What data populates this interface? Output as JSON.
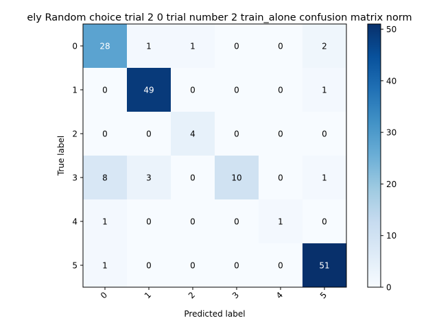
{
  "chart_data": {
    "type": "heatmap",
    "title": "ely Random choice trial 2 0 trial number 2 train_alone confusion matrix norm",
    "xlabel": "Predicted label",
    "ylabel": "True label",
    "x_categories": [
      "0",
      "1",
      "2",
      "3",
      "4",
      "5"
    ],
    "y_categories": [
      "0",
      "1",
      "2",
      "3",
      "4",
      "5"
    ],
    "values": [
      [
        28,
        1,
        1,
        0,
        0,
        2
      ],
      [
        0,
        49,
        0,
        0,
        0,
        1
      ],
      [
        0,
        0,
        4,
        0,
        0,
        0
      ],
      [
        8,
        3,
        0,
        10,
        0,
        1
      ],
      [
        1,
        0,
        0,
        0,
        1,
        0
      ],
      [
        1,
        0,
        0,
        0,
        0,
        51
      ]
    ],
    "colormap": "Blues",
    "vmin": 0,
    "vmax": 51,
    "colorbar_ticks": [
      "0",
      "10",
      "20",
      "30",
      "40",
      "50"
    ],
    "grid": false
  }
}
